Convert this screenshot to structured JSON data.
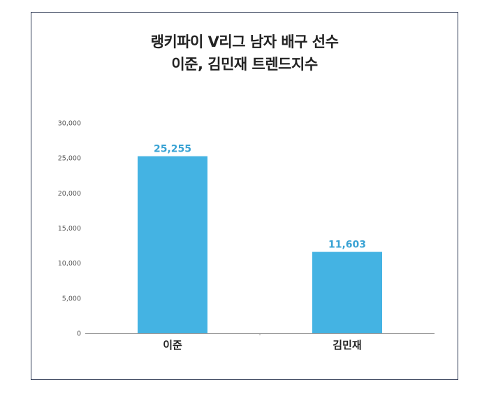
{
  "chart_data": {
    "type": "bar",
    "title_lines": [
      "랭키파이 V리그 남자 배구 선수",
      "이준, 김민재 트렌드지수"
    ],
    "categories": [
      "이준",
      "김민재"
    ],
    "values": [
      25255,
      11603
    ],
    "value_labels": [
      "25,255",
      "11,603"
    ],
    "ylim": [
      0,
      30000
    ],
    "yticks": [
      0,
      5000,
      10000,
      15000,
      20000,
      25000,
      30000
    ],
    "ytick_labels": [
      "0",
      "5,000",
      "10,000",
      "15,000",
      "20,000",
      "25,000",
      "30,000"
    ],
    "xlabel": "",
    "ylabel": "",
    "grid": false,
    "legend": "none",
    "colors": {
      "bar": "#44b3e3",
      "value_label": "#3aa3d4",
      "axis": "#999999",
      "tick_label": "#555555",
      "category_label": "#222222",
      "border": "#2a3550"
    }
  }
}
